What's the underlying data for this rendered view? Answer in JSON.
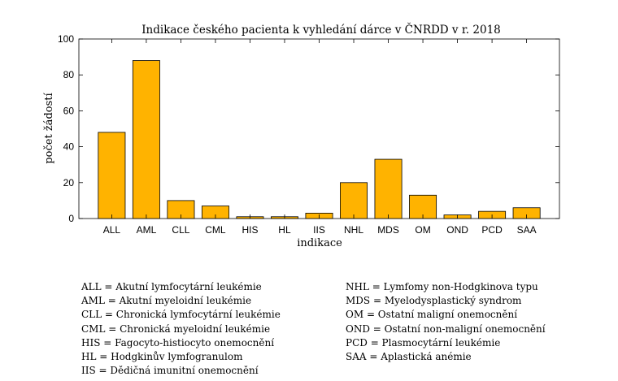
{
  "chart_data": {
    "type": "bar",
    "title": "Indikace českého pacienta k vyhledání dárce v ČNRDD v r. 2018",
    "xlabel": "indikace",
    "ylabel": "počet žádostí",
    "categories": [
      "ALL",
      "AML",
      "CLL",
      "CML",
      "HIS",
      "HL",
      "IIS",
      "NHL",
      "MDS",
      "OM",
      "OND",
      "PCD",
      "SAA"
    ],
    "values": [
      48,
      88,
      10,
      7,
      1,
      1,
      3,
      20,
      33,
      13,
      2,
      4,
      6
    ],
    "ylim": [
      0,
      100
    ],
    "yticks": [
      "0",
      "20",
      "40",
      "60",
      "80",
      "100"
    ],
    "grid": false,
    "bar_color": "#FFB300",
    "edge_color": "#000000"
  },
  "legend": {
    "left": [
      "ALL = Akutní lymfocytární leukémie",
      "AML = Akutní myeloidní leukémie",
      "CLL  = Chronická lymfocytární leukémie",
      "CML = Chronická myeloidní leukémie",
      "HIS = Fagocyto-histiocyto onemocnění",
      "HL = Hodgkinův lymfogranulom",
      "IIS = Dědičná imunitní onemocnění"
    ],
    "right": [
      "NHL = Lymfomy non-Hodgkinova typu",
      "MDS = Myelodysplastický syndrom",
      "OM = Ostatní maligní onemocnění",
      "OND = Ostatní non-maligní onemocnění",
      "PCD = Plasmocytární leukémie",
      "SAA = Aplastická anémie"
    ]
  }
}
